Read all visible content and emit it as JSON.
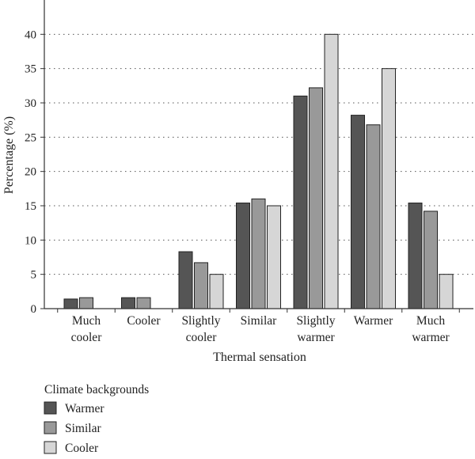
{
  "chart_data": {
    "type": "bar",
    "title": "",
    "xlabel": "Thermal sensation",
    "ylabel": "Percentage (%)",
    "ylim": [
      0,
      45
    ],
    "yticks": [
      0,
      5,
      10,
      15,
      20,
      25,
      30,
      35,
      40
    ],
    "grid": "horizontal dotted",
    "legend_position": "bottom-left",
    "categories": [
      [
        "Much",
        "cooler"
      ],
      [
        "Cooler"
      ],
      [
        "Slightly",
        "cooler"
      ],
      [
        "Similar"
      ],
      [
        "Slightly",
        "warmer"
      ],
      [
        "Warmer"
      ],
      [
        "Much",
        "warmer"
      ]
    ],
    "legend_title": "Climate backgrounds",
    "series": [
      {
        "name": "Warmer",
        "color": "#555555",
        "values": [
          1.4,
          1.6,
          8.3,
          15.4,
          31.0,
          28.2,
          15.4
        ]
      },
      {
        "name": "Similar",
        "color": "#999999",
        "values": [
          1.6,
          1.6,
          6.7,
          16.0,
          32.2,
          26.8,
          14.2
        ]
      },
      {
        "name": "Cooler",
        "color": "#d6d6d6",
        "values": [
          0,
          0,
          5.0,
          15.0,
          40.0,
          35.0,
          5.0
        ]
      }
    ]
  }
}
